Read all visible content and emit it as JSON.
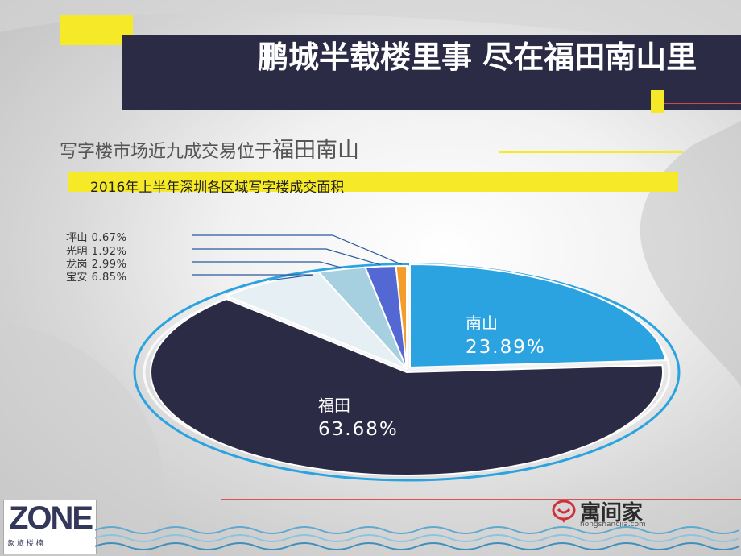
{
  "slide": {
    "title": "鹏城半载楼里事 尽在福田南山里",
    "subtitle_small": "写字楼市场近九成交易位于",
    "subtitle_big": "福田南山",
    "logo_text": "ZONE",
    "logo_sub": "象 旅 楼 楠",
    "brand_text": "寓间家",
    "brand_sub": "hongshancjia.com"
  },
  "colors": {
    "futian": "#2b2b45",
    "nanshan": "#2ba3e0",
    "baoan": "#e6eff3",
    "longgang": "#a6cfe0",
    "guangming": "#5468d4",
    "pingshan": "#f59d2a",
    "accent_yellow": "#f5e928"
  },
  "chart_data": {
    "type": "pie",
    "title": "2016年上半年深圳各区域写字楼成交面积",
    "slices": [
      {
        "name": "南山",
        "value": 23.89,
        "label": "23.89%"
      },
      {
        "name": "福田",
        "value": 63.68,
        "label": "63.68%"
      },
      {
        "name": "宝安",
        "value": 6.85,
        "label": "6.85%"
      },
      {
        "name": "龙岗",
        "value": 2.99,
        "label": "2.99%"
      },
      {
        "name": "光明",
        "value": 1.92,
        "label": "1.92%"
      },
      {
        "name": "坪山",
        "value": 0.67,
        "label": "0.67%"
      }
    ]
  }
}
